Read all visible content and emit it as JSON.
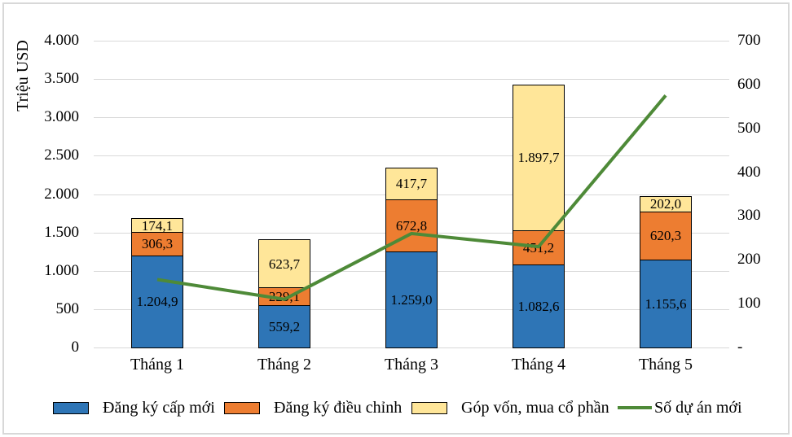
{
  "chart_data": {
    "type": "bar",
    "subtype": "stacked-bars-with-line-overlay",
    "title": "",
    "grid": true,
    "legend_position": "bottom",
    "colors": {
      "border": "#d8d8d8",
      "gridline": "#d9d9d9",
      "bar_border": "#000000"
    },
    "categories": [
      "Tháng 1",
      "Tháng 2",
      "Tháng 3",
      "Tháng 4",
      "Tháng 5"
    ],
    "series": [
      {
        "name": "Đăng ký cấp mới",
        "type": "bar",
        "color": "#2E75B6",
        "values": [
          1204.9,
          559.2,
          1259.0,
          1082.6,
          1155.6
        ],
        "labels": [
          "1.204,9",
          "559,2",
          "1.259,0",
          "1.082,6",
          "1.155,6"
        ]
      },
      {
        "name": "Đăng ký điều chỉnh",
        "type": "bar",
        "color": "#ED7D31",
        "values": [
          306.3,
          229.1,
          672.8,
          451.2,
          620.3
        ],
        "labels": [
          "306,3",
          "229,1",
          "672,8",
          "451,2",
          "620,3"
        ]
      },
      {
        "name": "Góp vốn, mua cổ phần",
        "type": "bar",
        "color": "#FFE699",
        "values": [
          174.1,
          623.7,
          417.7,
          1897.7,
          202.0
        ],
        "labels": [
          "174,1",
          "623,7",
          "417,7",
          "1.897,7",
          "202,0"
        ]
      },
      {
        "name": "Số dự án mới",
        "type": "line",
        "axis": "right",
        "color": "#4E8A38",
        "values": [
          155,
          110,
          260,
          230,
          575
        ]
      }
    ],
    "left_axis": {
      "title": "Triệu USD",
      "min": 0,
      "max": 4000,
      "ticks": [
        {
          "v": 0,
          "label": "0"
        },
        {
          "v": 500,
          "label": "500"
        },
        {
          "v": 1000,
          "label": "1.000"
        },
        {
          "v": 1500,
          "label": "1.500"
        },
        {
          "v": 2000,
          "label": "2.000"
        },
        {
          "v": 2500,
          "label": "2.500"
        },
        {
          "v": 3000,
          "label": "3.000"
        },
        {
          "v": 3500,
          "label": "3.500"
        },
        {
          "v": 4000,
          "label": "4.000"
        }
      ]
    },
    "right_axis": {
      "min": 0,
      "max": 700,
      "ticks": [
        {
          "v": 0,
          "label": "-"
        },
        {
          "v": 100,
          "label": "100"
        },
        {
          "v": 200,
          "label": "200"
        },
        {
          "v": 300,
          "label": "300"
        },
        {
          "v": 400,
          "label": "400"
        },
        {
          "v": 500,
          "label": "500"
        },
        {
          "v": 600,
          "label": "600"
        },
        {
          "v": 700,
          "label": "700"
        }
      ]
    }
  }
}
